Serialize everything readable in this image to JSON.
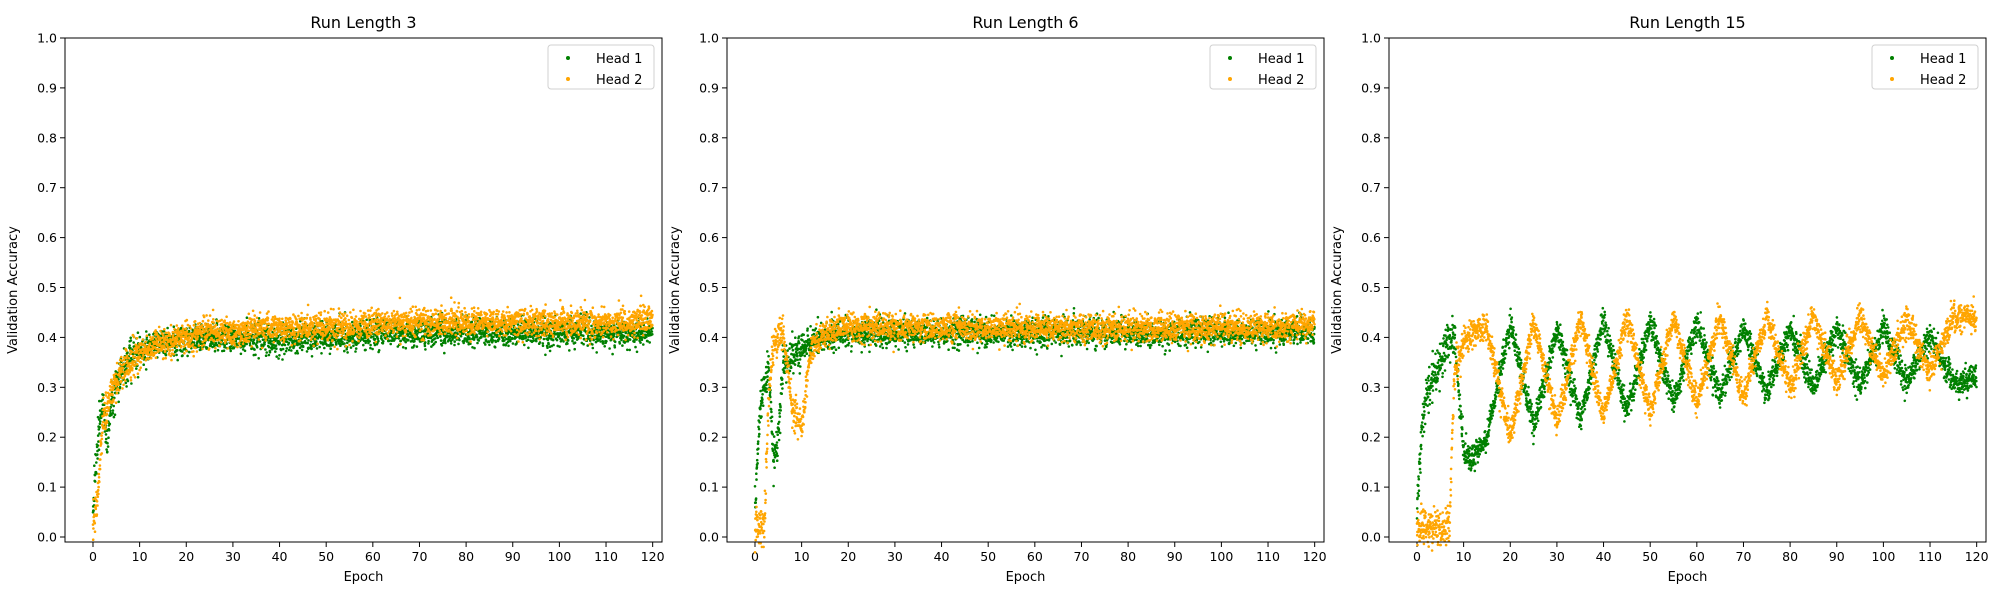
{
  "chart_data": [
    {
      "type": "scatter",
      "title": "Run Length 3",
      "xlabel": "Epoch",
      "ylabel": "Validation Accuracy",
      "xlim": [
        -6,
        122
      ],
      "ylim": [
        -0.01,
        1.0
      ],
      "xticks": [
        0,
        10,
        20,
        30,
        40,
        50,
        60,
        70,
        80,
        90,
        100,
        110,
        120
      ],
      "yticks": [
        0.0,
        0.1,
        0.2,
        0.3,
        0.4,
        0.5,
        0.6,
        0.7,
        0.8,
        0.9,
        1.0
      ],
      "legend_position": "top-right",
      "run_length": 3,
      "series": [
        {
          "name": "Head 1",
          "color": "#008000",
          "x": [
            0,
            1,
            2,
            3,
            4,
            5,
            6,
            8,
            10,
            12,
            14,
            16,
            18,
            20,
            25,
            30,
            35,
            40,
            45,
            50,
            55,
            60,
            65,
            70,
            75,
            80,
            85,
            90,
            95,
            100,
            105,
            110,
            115,
            120
          ],
          "y": [
            0.05,
            0.2,
            0.27,
            0.19,
            0.28,
            0.3,
            0.33,
            0.36,
            0.37,
            0.38,
            0.39,
            0.39,
            0.39,
            0.4,
            0.4,
            0.4,
            0.4,
            0.4,
            0.4,
            0.4,
            0.4,
            0.41,
            0.41,
            0.41,
            0.41,
            0.41,
            0.41,
            0.41,
            0.41,
            0.41,
            0.41,
            0.41,
            0.41,
            0.41
          ]
        },
        {
          "name": "Head 2",
          "color": "#FFA500",
          "x": [
            0,
            1,
            2,
            3,
            4,
            5,
            6,
            8,
            10,
            12,
            14,
            16,
            18,
            20,
            25,
            30,
            35,
            40,
            45,
            50,
            55,
            60,
            65,
            70,
            75,
            80,
            85,
            90,
            95,
            100,
            105,
            110,
            115,
            120
          ],
          "y": [
            0.02,
            0.08,
            0.22,
            0.26,
            0.29,
            0.31,
            0.33,
            0.35,
            0.37,
            0.38,
            0.39,
            0.39,
            0.4,
            0.4,
            0.41,
            0.41,
            0.42,
            0.42,
            0.42,
            0.42,
            0.42,
            0.43,
            0.43,
            0.43,
            0.43,
            0.43,
            0.43,
            0.43,
            0.43,
            0.43,
            0.43,
            0.43,
            0.43,
            0.44
          ]
        }
      ]
    },
    {
      "type": "scatter",
      "title": "Run Length 6",
      "xlabel": "Epoch",
      "ylabel": "Validation Accuracy",
      "xlim": [
        -6,
        122
      ],
      "ylim": [
        -0.01,
        1.0
      ],
      "xticks": [
        0,
        10,
        20,
        30,
        40,
        50,
        60,
        70,
        80,
        90,
        100,
        110,
        120
      ],
      "yticks": [
        0.0,
        0.1,
        0.2,
        0.3,
        0.4,
        0.5,
        0.6,
        0.7,
        0.8,
        0.9,
        1.0
      ],
      "legend_position": "top-right",
      "run_length": 6,
      "series": [
        {
          "name": "Head 1",
          "color": "#008000",
          "x": [
            0,
            1,
            2,
            3,
            4,
            5,
            6,
            8,
            10,
            12,
            14,
            16,
            18,
            20,
            25,
            30,
            35,
            40,
            45,
            50,
            55,
            60,
            65,
            70,
            75,
            80,
            85,
            90,
            95,
            100,
            105,
            110,
            115,
            120
          ],
          "y": [
            0.05,
            0.25,
            0.3,
            0.33,
            0.15,
            0.2,
            0.34,
            0.36,
            0.38,
            0.39,
            0.4,
            0.4,
            0.41,
            0.41,
            0.41,
            0.41,
            0.41,
            0.41,
            0.41,
            0.41,
            0.41,
            0.41,
            0.41,
            0.41,
            0.41,
            0.41,
            0.41,
            0.41,
            0.41,
            0.41,
            0.41,
            0.41,
            0.41,
            0.41
          ]
        },
        {
          "name": "Head 2",
          "color": "#FFA500",
          "x": [
            0,
            1,
            2,
            3,
            4,
            5,
            6,
            8,
            10,
            12,
            14,
            16,
            18,
            20,
            25,
            30,
            35,
            40,
            45,
            50,
            55,
            60,
            65,
            70,
            75,
            80,
            85,
            90,
            95,
            100,
            105,
            110,
            115,
            120
          ],
          "y": [
            0.02,
            0.02,
            0.02,
            0.3,
            0.38,
            0.4,
            0.41,
            0.26,
            0.22,
            0.38,
            0.4,
            0.41,
            0.42,
            0.42,
            0.42,
            0.42,
            0.42,
            0.42,
            0.42,
            0.42,
            0.42,
            0.42,
            0.42,
            0.42,
            0.42,
            0.42,
            0.42,
            0.42,
            0.42,
            0.42,
            0.42,
            0.42,
            0.42,
            0.43
          ]
        }
      ]
    },
    {
      "type": "scatter",
      "title": "Run Length 15",
      "xlabel": "Epoch",
      "ylabel": "Validation Accuracy",
      "xlim": [
        -6,
        122
      ],
      "ylim": [
        -0.01,
        1.0
      ],
      "xticks": [
        0,
        10,
        20,
        30,
        40,
        50,
        60,
        70,
        80,
        90,
        100,
        110,
        120
      ],
      "yticks": [
        0.0,
        0.1,
        0.2,
        0.3,
        0.4,
        0.5,
        0.6,
        0.7,
        0.8,
        0.9,
        1.0
      ],
      "legend_position": "top-right",
      "run_length": 15,
      "series": [
        {
          "name": "Head 1",
          "color": "#008000",
          "x": [
            0,
            1,
            2,
            3,
            4,
            5,
            6,
            7,
            8,
            10,
            12,
            15,
            20,
            25,
            30,
            35,
            40,
            45,
            50,
            55,
            60,
            65,
            70,
            75,
            80,
            85,
            90,
            95,
            100,
            105,
            110,
            115,
            120
          ],
          "y": [
            0.05,
            0.22,
            0.28,
            0.31,
            0.33,
            0.35,
            0.37,
            0.39,
            0.4,
            0.17,
            0.16,
            0.2,
            0.43,
            0.22,
            0.42,
            0.24,
            0.43,
            0.25,
            0.43,
            0.27,
            0.43,
            0.28,
            0.42,
            0.29,
            0.42,
            0.3,
            0.42,
            0.3,
            0.42,
            0.31,
            0.41,
            0.31,
            0.32
          ]
        },
        {
          "name": "Head 2",
          "color": "#FFA500",
          "x": [
            0,
            1,
            2,
            3,
            4,
            5,
            6,
            7,
            8,
            10,
            12,
            15,
            20,
            25,
            30,
            35,
            40,
            45,
            50,
            55,
            60,
            65,
            70,
            75,
            80,
            85,
            90,
            95,
            100,
            105,
            110,
            115,
            120
          ],
          "y": [
            0.02,
            0.02,
            0.02,
            0.02,
            0.02,
            0.02,
            0.02,
            0.03,
            0.33,
            0.39,
            0.41,
            0.42,
            0.2,
            0.43,
            0.23,
            0.44,
            0.24,
            0.44,
            0.25,
            0.44,
            0.27,
            0.44,
            0.28,
            0.44,
            0.3,
            0.44,
            0.31,
            0.44,
            0.32,
            0.44,
            0.33,
            0.44,
            0.44
          ]
        }
      ]
    }
  ]
}
